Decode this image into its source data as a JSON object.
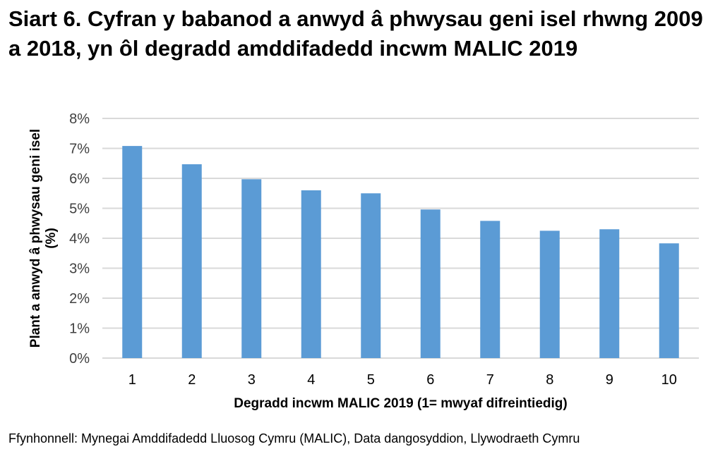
{
  "chart_data": {
    "type": "bar",
    "title": "Siart 6. Cyfran y babanod a anwyd â phwysau geni isel rhwng 2009 a 2018, yn ôl degradd amddifadedd incwm MALIC 2019",
    "xlabel": "Degradd incwm MALIC 2019 (1= mwyaf difreintiedig)",
    "ylabel": "Plant a anwyd â phwysau geni isel (%)",
    "categories": [
      "1",
      "2",
      "3",
      "4",
      "5",
      "6",
      "7",
      "8",
      "9",
      "10"
    ],
    "values": [
      7.08,
      6.47,
      5.97,
      5.6,
      5.5,
      4.96,
      4.58,
      4.25,
      4.3,
      3.83
    ],
    "ylim": [
      0,
      8
    ],
    "yticks": [
      "0%",
      "1%",
      "2%",
      "3%",
      "4%",
      "5%",
      "6%",
      "7%",
      "8%"
    ],
    "grid": true,
    "bar_color": "#5B9BD5",
    "grid_color": "#D9D9D9"
  },
  "source": "Ffynhonnell: Mynegai Amddifadedd Lluosog Cymru (MALIC), Data dangosyddion, Llywodraeth Cymru"
}
